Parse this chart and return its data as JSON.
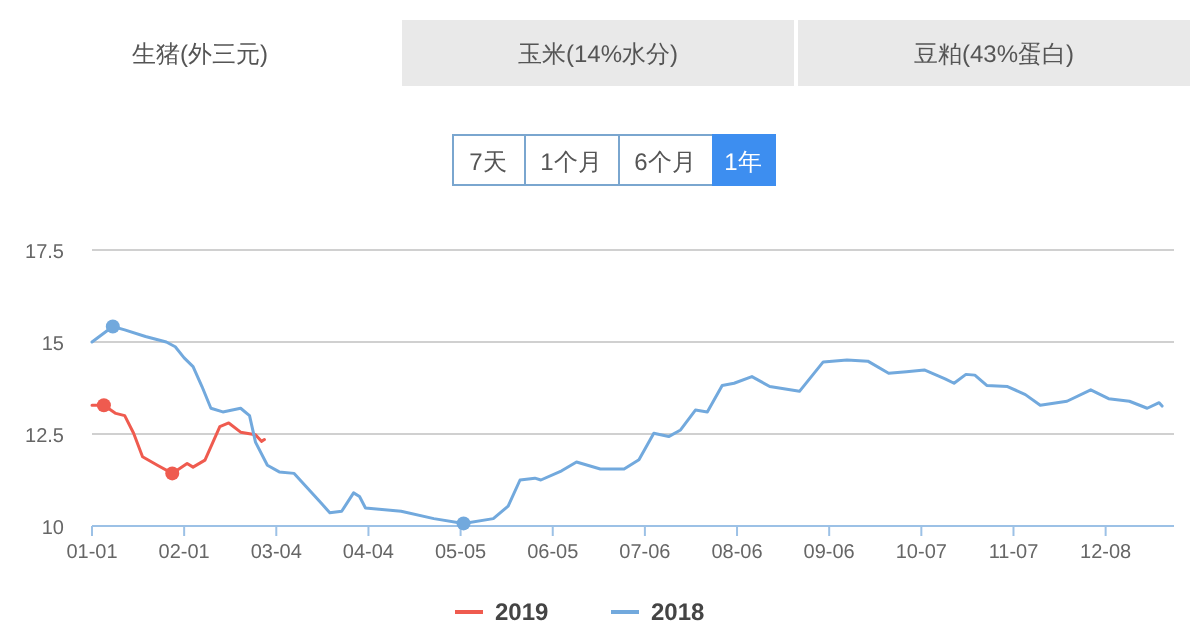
{
  "chart_data": {
    "type": "line",
    "title": "生猪(外三元)",
    "annotations": [
      "玉米(14%水分)",
      "豆粕(43%蛋白)",
      "7天",
      "1个月",
      "6个月",
      "1年"
    ],
    "xlim": [
      "--01-01",
      "--12-31"
    ],
    "xticks": [
      {
        "value": "--01-01",
        "label": "01-01"
      },
      {
        "value": "--02-01",
        "label": "02-01"
      },
      {
        "value": "--03-04",
        "label": "03-04"
      },
      {
        "value": "--04-04",
        "label": "04-04"
      },
      {
        "value": "--05-05",
        "label": "05-05"
      },
      {
        "value": "--06-05",
        "label": "06-05"
      },
      {
        "value": "--07-06",
        "label": "07-06"
      },
      {
        "value": "--08-06",
        "label": "08-06"
      },
      {
        "value": "--09-06",
        "label": "09-06"
      },
      {
        "value": "--10-07",
        "label": "10-07"
      },
      {
        "value": "--11-07",
        "label": "11-07"
      },
      {
        "value": "--12-08",
        "label": "12-08"
      }
    ],
    "ylim": [
      10,
      17.5
    ],
    "yticks": [
      10,
      12.5,
      15,
      17.5
    ],
    "grid": "y",
    "legend": "bottom",
    "series": [
      {
        "name": "2019",
        "color": "#ef5b4f",
        "x": [
          "--01-01",
          "--01-05",
          "--01-09",
          "--01-12",
          "--01-15",
          "--01-18",
          "--01-23",
          "--01-28",
          "--02-02",
          "--02-04",
          "--02-08",
          "--02-13",
          "--02-16",
          "--02-20",
          "--02-25",
          "--02-27",
          "--02-28"
        ],
        "values": [
          13.28,
          13.28,
          13.06,
          13.0,
          12.52,
          11.88,
          11.65,
          11.43,
          11.7,
          11.6,
          11.79,
          12.7,
          12.8,
          12.55,
          12.48,
          12.3,
          12.35
        ]
      },
      {
        "name": "2018",
        "color": "#72a9dd",
        "x": [
          "--01-01",
          "--01-08",
          "--01-12",
          "--01-19",
          "--01-26",
          "--01-29",
          "--02-01",
          "--02-04",
          "--02-07",
          "--02-10",
          "--02-14",
          "--02-20",
          "--02-23",
          "--02-25",
          "--03-01",
          "--03-05",
          "--03-10",
          "--03-14",
          "--03-19",
          "--03-22",
          "--03-26",
          "--03-30",
          "--04-01",
          "--04-03",
          "--04-15",
          "--04-26",
          "--05-06",
          "--05-16",
          "--05-21",
          "--05-25",
          "--05-30",
          "--06-01",
          "--06-08",
          "--06-13",
          "--06-21",
          "--06-29",
          "--07-04",
          "--07-09",
          "--07-14",
          "--07-18",
          "--07-23",
          "--07-27",
          "--08-01",
          "--08-05",
          "--08-11",
          "--08-17",
          "--08-27",
          "--09-04",
          "--09-12",
          "--09-19",
          "--09-26",
          "--10-02",
          "--10-08",
          "--10-15",
          "--10-18",
          "--10-22",
          "--10-25",
          "--10-29",
          "--11-05",
          "--11-11",
          "--11-16",
          "--11-25",
          "--12-03",
          "--12-09",
          "--12-16",
          "--12-22",
          "--12-26",
          "--12-27"
        ],
        "values": [
          15.0,
          15.42,
          15.33,
          15.15,
          15.0,
          14.87,
          14.57,
          14.33,
          13.79,
          13.2,
          13.1,
          13.2,
          13.0,
          12.28,
          11.65,
          11.47,
          11.43,
          11.07,
          10.63,
          10.36,
          10.4,
          10.9,
          10.8,
          10.49,
          10.4,
          10.2,
          10.07,
          10.2,
          10.54,
          11.25,
          11.3,
          11.25,
          11.5,
          11.74,
          11.55,
          11.55,
          11.8,
          12.52,
          12.43,
          12.61,
          13.15,
          13.1,
          13.82,
          13.88,
          14.06,
          13.79,
          13.66,
          14.46,
          14.51,
          14.48,
          14.15,
          14.19,
          14.24,
          14.0,
          13.88,
          14.12,
          14.1,
          13.82,
          13.79,
          13.57,
          13.28,
          13.39,
          13.7,
          13.46,
          13.39,
          13.2,
          13.35,
          13.26
        ]
      },
      {
        "type": "scatter",
        "color": "#ef5b4f",
        "x": [
          "--01-05",
          "--01-28"
        ],
        "values": [
          13.28,
          11.43
        ]
      },
      {
        "type": "scatter",
        "color": "#72a9dd",
        "x": [
          "--01-08",
          "--05-06"
        ],
        "values": [
          15.42,
          10.07
        ]
      }
    ]
  }
}
